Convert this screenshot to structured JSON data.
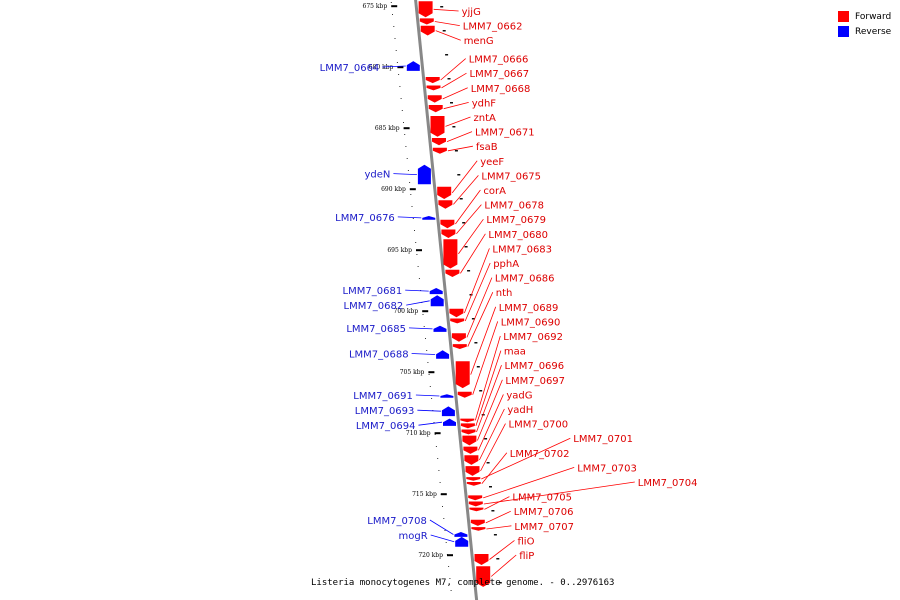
{
  "colors": {
    "forward": "#ff0000",
    "reverse": "#0000ff",
    "backbone": "#888888"
  },
  "legend": [
    {
      "label": "Forward",
      "color": "#ff0000"
    },
    {
      "label": "Reverse",
      "color": "#0000ff"
    }
  ],
  "caption": "Listeria monocytogenes M7, complete genome. - 0..2976163",
  "ticks": [
    {
      "kbp": 675,
      "label": "675 kbp"
    },
    {
      "kbp": 680,
      "label": "680 kbp"
    },
    {
      "kbp": 685,
      "label": "685 kbp"
    },
    {
      "kbp": 690,
      "label": "690 kbp"
    },
    {
      "kbp": 695,
      "label": "695 kbp"
    },
    {
      "kbp": 700,
      "label": "700 kbp"
    },
    {
      "kbp": 705,
      "label": "705 kbp"
    },
    {
      "kbp": 710,
      "label": "710 kbp"
    },
    {
      "kbp": 715,
      "label": "715 kbp"
    },
    {
      "kbp": 720,
      "label": "720 kbp"
    }
  ],
  "genes": [
    {
      "name": "yjjG",
      "strand": "forward",
      "start": 674.6,
      "end": 675.9
    },
    {
      "name": "LMM7_0662",
      "strand": "forward",
      "start": 676.0,
      "end": 676.5
    },
    {
      "name": "menG",
      "strand": "forward",
      "start": 676.6,
      "end": 677.4
    },
    {
      "name": "LMM7_0664",
      "strand": "reverse",
      "start": 679.5,
      "end": 680.3
    },
    {
      "name": "LMM7_0666",
      "strand": "forward",
      "start": 680.8,
      "end": 681.3
    },
    {
      "name": "LMM7_0667",
      "strand": "forward",
      "start": 681.5,
      "end": 681.9
    },
    {
      "name": "LMM7_0668",
      "strand": "forward",
      "start": 682.3,
      "end": 682.9
    },
    {
      "name": "ydhF",
      "strand": "forward",
      "start": 683.1,
      "end": 683.7
    },
    {
      "name": "zntA",
      "strand": "forward",
      "start": 684.0,
      "end": 685.7
    },
    {
      "name": "LMM7_0671",
      "strand": "forward",
      "start": 685.8,
      "end": 686.4
    },
    {
      "name": "fsaB",
      "strand": "forward",
      "start": 686.6,
      "end": 687.1
    },
    {
      "name": "ydeN",
      "strand": "reverse",
      "start": 688.0,
      "end": 689.6
    },
    {
      "name": "yeeF",
      "strand": "forward",
      "start": 689.8,
      "end": 690.8
    },
    {
      "name": "LMM7_0675",
      "strand": "forward",
      "start": 690.9,
      "end": 691.6
    },
    {
      "name": "LMM7_0676",
      "strand": "reverse",
      "start": 692.2,
      "end": 692.5
    },
    {
      "name": "corA",
      "strand": "forward",
      "start": 692.5,
      "end": 693.2
    },
    {
      "name": "LMM7_0678",
      "strand": "forward",
      "start": 693.3,
      "end": 694.0
    },
    {
      "name": "LMM7_0679",
      "strand": "forward",
      "start": 694.1,
      "end": 696.5
    },
    {
      "name": "LMM7_0680",
      "strand": "forward",
      "start": 696.6,
      "end": 697.2
    },
    {
      "name": "LMM7_0681",
      "strand": "reverse",
      "start": 698.1,
      "end": 698.6
    },
    {
      "name": "LMM7_0682",
      "strand": "reverse",
      "start": 698.7,
      "end": 699.6
    },
    {
      "name": "LMM7_0683",
      "strand": "forward",
      "start": 699.8,
      "end": 700.5
    },
    {
      "name": "pphA",
      "strand": "forward",
      "start": 700.6,
      "end": 701.0
    },
    {
      "name": "LMM7_0685",
      "strand": "reverse",
      "start": 701.2,
      "end": 701.7
    },
    {
      "name": "LMM7_0686",
      "strand": "forward",
      "start": 701.8,
      "end": 702.5
    },
    {
      "name": "nth",
      "strand": "forward",
      "start": 702.7,
      "end": 703.1
    },
    {
      "name": "LMM7_0688",
      "strand": "reverse",
      "start": 703.2,
      "end": 703.9
    },
    {
      "name": "LMM7_0689",
      "strand": "forward",
      "start": 704.1,
      "end": 706.3
    },
    {
      "name": "LMM7_0690",
      "strand": "forward",
      "start": 706.6,
      "end": 707.1
    },
    {
      "name": "LMM7_0691",
      "strand": "reverse",
      "start": 706.8,
      "end": 707.1
    },
    {
      "name": "LMM7_0692",
      "strand": "forward",
      "start": 708.8,
      "end": 709.1
    },
    {
      "name": "LMM7_0693",
      "strand": "reverse",
      "start": 707.8,
      "end": 708.6
    },
    {
      "name": "LMM7_0694",
      "strand": "reverse",
      "start": 708.8,
      "end": 709.4
    },
    {
      "name": "maa",
      "strand": "forward",
      "start": 709.2,
      "end": 709.6
    },
    {
      "name": "LMM7_0696",
      "strand": "forward",
      "start": 709.7,
      "end": 710.1
    },
    {
      "name": "LMM7_0697",
      "strand": "forward",
      "start": 710.2,
      "end": 711.0
    },
    {
      "name": "yadG",
      "strand": "forward",
      "start": 711.1,
      "end": 711.7
    },
    {
      "name": "yadH",
      "strand": "forward",
      "start": 711.8,
      "end": 712.6
    },
    {
      "name": "LMM7_0700",
      "strand": "forward",
      "start": 712.7,
      "end": 713.5
    },
    {
      "name": "LMM7_0701",
      "strand": "forward",
      "start": 713.6,
      "end": 713.9
    },
    {
      "name": "LMM7_0702",
      "strand": "forward",
      "start": 714.0,
      "end": 714.3
    },
    {
      "name": "LMM7_0703",
      "strand": "forward",
      "start": 715.1,
      "end": 715.5
    },
    {
      "name": "LMM7_0704",
      "strand": "forward",
      "start": 715.6,
      "end": 716.0
    },
    {
      "name": "LMM7_0705",
      "strand": "forward",
      "start": 716.1,
      "end": 716.4
    },
    {
      "name": "LMM7_0706",
      "strand": "forward",
      "start": 717.1,
      "end": 717.6
    },
    {
      "name": "LMM7_0707",
      "strand": "forward",
      "start": 717.7,
      "end": 718.0
    },
    {
      "name": "LMM7_0708",
      "strand": "reverse",
      "start": 718.1,
      "end": 718.5
    },
    {
      "name": "mogR",
      "strand": "reverse",
      "start": 718.5,
      "end": 719.3
    },
    {
      "name": "fliO",
      "strand": "forward",
      "start": 719.9,
      "end": 720.8
    },
    {
      "name": "fliP",
      "strand": "forward",
      "start": 720.9,
      "end": 722.6
    }
  ]
}
